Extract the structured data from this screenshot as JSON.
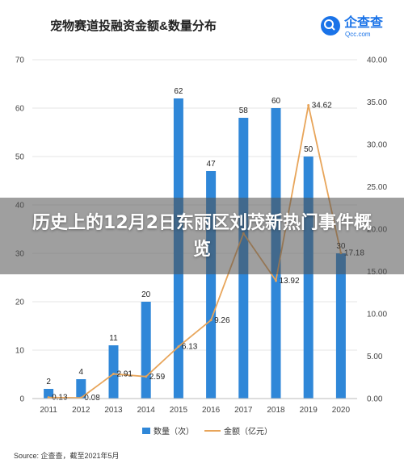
{
  "chart_data": {
    "type": "bar",
    "title": "宠物赛道投融资金额&数量分布",
    "categories": [
      "2011",
      "2012",
      "2013",
      "2014",
      "2015",
      "2016",
      "2017",
      "2018",
      "2019",
      "2020"
    ],
    "series": [
      {
        "name": "数量（次）",
        "type": "bar",
        "axis": "left",
        "values": [
          2,
          4,
          11,
          20,
          62,
          47,
          58,
          60,
          50,
          30
        ]
      },
      {
        "name": "金额（亿元）",
        "type": "line",
        "axis": "right",
        "values": [
          0.13,
          0.08,
          2.91,
          2.59,
          6.13,
          9.26,
          19.5,
          13.92,
          34.62,
          17.18
        ]
      }
    ],
    "data_labels": {
      "bar": [
        "2",
        "4",
        "11",
        "20",
        "62",
        "47",
        "58",
        "60",
        "50",
        "30"
      ],
      "line": [
        "0.13",
        "0.08",
        "2.91",
        "2.59",
        "6.13",
        "9.26",
        "",
        "13.92",
        "34.62",
        "17.18"
      ]
    },
    "y_left": {
      "range": [
        0,
        70
      ],
      "ticks": [
        "0",
        "10",
        "20",
        "30",
        "40",
        "50",
        "60",
        "70"
      ]
    },
    "y_right": {
      "range": [
        0,
        40
      ],
      "ticks": [
        "0.00",
        "5.00",
        "10.00",
        "15.00",
        "20.00",
        "25.00",
        "30.00",
        "35.00",
        "40.00"
      ]
    },
    "grid": true,
    "legend_placement": "bottom",
    "colors": {
      "bar": "#2f87d8",
      "line": "#e8a55a"
    }
  },
  "source": "Source: 企查查，截至2021年5月",
  "logo": {
    "name": "企查查",
    "domain": "Qcc.com"
  },
  "banner": {
    "text": "历史上的12月2日东丽区刘茂新热门事件概览"
  }
}
